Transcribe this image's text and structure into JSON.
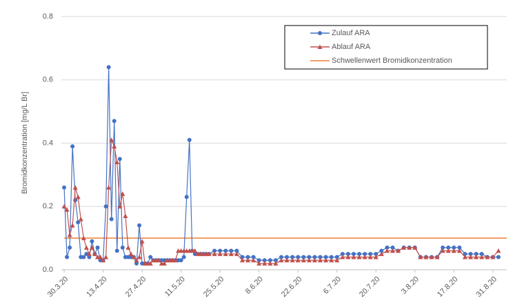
{
  "chart_data": {
    "type": "line",
    "y_label": "Bromidkonzentration [mg/L Br]",
    "x": [
      "30.3.20",
      "31.3.20",
      "1.4.20",
      "2.4.20",
      "3.4.20",
      "4.4.20",
      "5.4.20",
      "6.4.20",
      "7.4.20",
      "8.4.20",
      "9.4.20",
      "10.4.20",
      "11.4.20",
      "12.4.20",
      "13.4.20",
      "14.4.20",
      "15.4.20",
      "16.4.20",
      "17.4.20",
      "18.4.20",
      "19.4.20",
      "20.4.20",
      "21.4.20",
      "22.4.20",
      "23.4.20",
      "24.4.20",
      "25.4.20",
      "26.4.20",
      "27.4.20",
      "28.4.20",
      "29.4.20",
      "30.4.20",
      "1.5.20",
      "2.5.20",
      "3.5.20",
      "4.5.20",
      "5.5.20",
      "6.5.20",
      "7.5.20",
      "8.5.20",
      "9.5.20",
      "10.5.20",
      "11.5.20",
      "12.5.20",
      "13.5.20",
      "14.5.20",
      "15.5.20",
      "16.5.20",
      "17.5.20",
      "18.5.20",
      "19.5.20",
      "20.5.20",
      "21.5.20",
      "23.5.20",
      "25.5.20",
      "27.5.20",
      "29.5.20",
      "31.5.20",
      "2.6.20",
      "4.6.20",
      "6.6.20",
      "8.6.20",
      "10.6.20",
      "12.6.20",
      "14.6.20",
      "16.6.20",
      "18.6.20",
      "20.6.20",
      "22.6.20",
      "24.6.20",
      "26.6.20",
      "28.6.20",
      "30.6.20",
      "2.7.20",
      "4.7.20",
      "6.7.20",
      "8.7.20",
      "10.7.20",
      "12.7.20",
      "14.7.20",
      "16.7.20",
      "18.7.20",
      "20.7.20",
      "22.7.20",
      "24.7.20",
      "26.7.20",
      "28.7.20",
      "30.7.20",
      "1.8.20",
      "3.8.20",
      "5.8.20",
      "7.8.20",
      "9.8.20",
      "11.8.20",
      "13.8.20",
      "15.8.20",
      "17.8.20",
      "19.8.20",
      "21.8.20",
      "23.8.20",
      "25.8.20",
      "27.8.20",
      "29.8.20",
      "31.8.20",
      "2.9.20"
    ],
    "series": [
      {
        "name": "Zulauf ARA",
        "color": "#4472c4",
        "marker": "circle",
        "values": [
          0.26,
          0.04,
          0.07,
          0.39,
          0.22,
          0.15,
          0.04,
          0.04,
          0.05,
          0.04,
          0.09,
          0.05,
          0.07,
          0.03,
          0.03,
          0.2,
          0.64,
          0.16,
          0.47,
          0.06,
          0.35,
          0.07,
          0.04,
          0.04,
          0.04,
          0.04,
          0.02,
          0.14,
          0.02,
          0.02,
          0.02,
          0.04,
          0.03,
          0.03,
          0.03,
          0.03,
          0.03,
          0.03,
          0.03,
          0.03,
          0.03,
          0.03,
          0.03,
          0.04,
          0.23,
          0.41,
          0.06,
          0.05,
          0.05,
          0.05,
          0.05,
          0.05,
          0.05,
          0.06,
          0.06,
          0.06,
          0.06,
          0.06,
          0.04,
          0.04,
          0.04,
          0.03,
          0.03,
          0.03,
          0.03,
          0.04,
          0.04,
          0.04,
          0.04,
          0.04,
          0.04,
          0.04,
          0.04,
          0.04,
          0.04,
          0.04,
          0.05,
          0.05,
          0.05,
          0.05,
          0.05,
          0.05,
          0.05,
          0.06,
          0.07,
          0.07,
          0.06,
          0.07,
          0.07,
          0.07,
          0.04,
          0.04,
          0.04,
          0.04,
          0.07,
          0.07,
          0.07,
          0.07,
          0.05,
          0.05,
          0.05,
          0.05,
          0.04,
          0.04,
          0.04
        ]
      },
      {
        "name": "Ablauf ARA",
        "color": "#c0504d",
        "marker": "triangle",
        "values": [
          0.2,
          0.19,
          0.11,
          0.14,
          0.26,
          0.23,
          0.16,
          0.1,
          0.07,
          0.05,
          0.07,
          0.05,
          0.04,
          0.04,
          0.03,
          0.04,
          0.26,
          0.41,
          0.39,
          0.34,
          0.2,
          0.24,
          0.17,
          0.07,
          0.05,
          0.04,
          0.03,
          0.04,
          0.09,
          0.02,
          0.02,
          0.02,
          0.03,
          0.03,
          0.03,
          0.02,
          0.02,
          0.03,
          0.03,
          0.03,
          0.03,
          0.06,
          0.06,
          0.06,
          0.06,
          0.06,
          0.06,
          0.06,
          0.05,
          0.05,
          0.05,
          0.05,
          0.05,
          0.05,
          0.05,
          0.05,
          0.05,
          0.05,
          0.03,
          0.03,
          0.03,
          0.02,
          0.02,
          0.02,
          0.02,
          0.03,
          0.03,
          0.03,
          0.03,
          0.03,
          0.03,
          0.03,
          0.03,
          0.03,
          0.03,
          0.03,
          0.04,
          0.04,
          0.04,
          0.04,
          0.04,
          0.04,
          0.04,
          0.05,
          0.06,
          0.06,
          0.06,
          0.07,
          0.07,
          0.07,
          0.04,
          0.04,
          0.04,
          0.04,
          0.06,
          0.06,
          0.06,
          0.06,
          0.04,
          0.04,
          0.04,
          0.04,
          0.04,
          0.04,
          0.06
        ]
      }
    ],
    "threshold": {
      "name": "Schwellenwert Bromidkonzentration",
      "value": 0.1,
      "color": "#ed7d31"
    },
    "xlim": [
      "29.3.20",
      "4.9.20"
    ],
    "xticks": [
      "30.3.20",
      "13.4.20",
      "27.4.20",
      "11.5.20",
      "25.5.20",
      "8.6.20",
      "22.6.20",
      "6.7.20",
      "20.7.20",
      "3.8.20",
      "17.8.20",
      "31.8.20"
    ],
    "ylim": [
      0,
      0.8
    ],
    "yticks": [
      {
        "value": 0,
        "label": "0.0"
      },
      0.2,
      0.4,
      0.6,
      0.8
    ],
    "grid": true,
    "legend": "upper right"
  }
}
